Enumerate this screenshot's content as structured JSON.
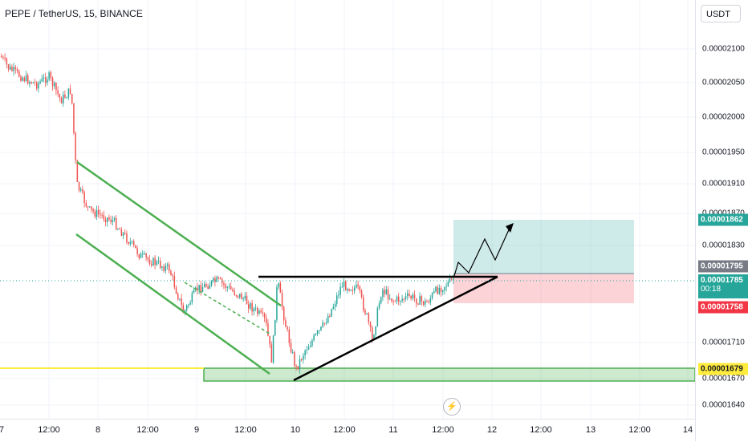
{
  "legend": {
    "title": "PEPE / TetherUS, 15, BINANCE"
  },
  "currency_button": "USDT",
  "price_ticks": [
    "0.00002100",
    "0.00002050",
    "0.00002000",
    "0.00001950",
    "0.00001910",
    "0.00001870",
    "0.00001830",
    "0.00001710",
    "0.00001670",
    "0.00001640"
  ],
  "price_labels": {
    "target": "0.00001862",
    "entry": "0.00001795",
    "last": "0.00001785",
    "countdown": "00:18",
    "stop": "0.00001758",
    "support": "0.00001679"
  },
  "time_ticks": [
    "7",
    "12:00",
    "8",
    "12:00",
    "9",
    "12:00",
    "10",
    "12:00",
    "11",
    "12:00",
    "12",
    "12:00",
    "13",
    "12:00",
    "14"
  ],
  "colors": {
    "up": "#26a69a",
    "down": "#ef5350",
    "channel": "#4caf50",
    "support_zone": "#4caf50",
    "target_fill": "#26a69a",
    "stop_fill": "#f23645",
    "support_line": "#ffeb3b"
  },
  "icons": {
    "lightning": "lightning-icon"
  }
}
